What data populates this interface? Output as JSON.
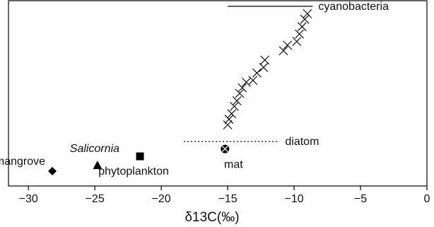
{
  "chart_data": {
    "type": "scatter",
    "title": "",
    "xlabel": "δ13C(‰)",
    "ylabel": "",
    "xlim": [
      -31.5,
      0
    ],
    "ylim": [
      0,
      10
    ],
    "grid": false,
    "legend": "none",
    "x_ticks": [
      -30,
      -25,
      -20,
      -15,
      -10,
      -5,
      0
    ],
    "x_tick_labels": [
      "−30",
      "−25",
      "−20",
      "−15",
      "−10",
      "−5",
      "0"
    ],
    "series": [
      {
        "marker": "diamond",
        "label": "mangrove",
        "points": [
          {
            "x": -28.2,
            "y": 0.8
          }
        ]
      },
      {
        "marker": "triangle",
        "label": "Salicornia",
        "label_italic": true,
        "points": [
          {
            "x": -24.8,
            "y": 1.1
          }
        ]
      },
      {
        "marker": "square",
        "label": "phytoplankton",
        "points": [
          {
            "x": -21.6,
            "y": 1.6
          }
        ]
      },
      {
        "marker": "circle-x",
        "label": "mat",
        "points": [
          {
            "x": -15.2,
            "y": 2.0
          }
        ]
      },
      {
        "marker": "x",
        "label": "",
        "points": [
          {
            "x": -15.0,
            "y": 3.3
          },
          {
            "x": -14.9,
            "y": 3.6
          },
          {
            "x": -14.7,
            "y": 3.9
          },
          {
            "x": -14.5,
            "y": 4.3
          },
          {
            "x": -14.3,
            "y": 4.6
          },
          {
            "x": -14.1,
            "y": 5.0
          },
          {
            "x": -13.9,
            "y": 5.3
          },
          {
            "x": -13.6,
            "y": 5.6
          },
          {
            "x": -13.1,
            "y": 5.7
          },
          {
            "x": -12.8,
            "y": 6.1
          },
          {
            "x": -12.3,
            "y": 6.4
          },
          {
            "x": -12.2,
            "y": 6.8
          },
          {
            "x": -10.8,
            "y": 7.3
          },
          {
            "x": -10.5,
            "y": 7.6
          },
          {
            "x": -9.8,
            "y": 7.8
          },
          {
            "x": -9.6,
            "y": 8.2
          },
          {
            "x": -9.4,
            "y": 8.6
          },
          {
            "x": -9.2,
            "y": 9.0
          },
          {
            "x": -9.0,
            "y": 9.3
          }
        ]
      }
    ],
    "range_lines": [
      {
        "label": "cyanobacteria",
        "style": "solid",
        "x_start": -15.0,
        "x_end": -8.6,
        "y": 9.7
      },
      {
        "label": "diatom",
        "style": "dotted",
        "x_start": -18.3,
        "x_end": -11.1,
        "y": 2.4
      }
    ]
  }
}
